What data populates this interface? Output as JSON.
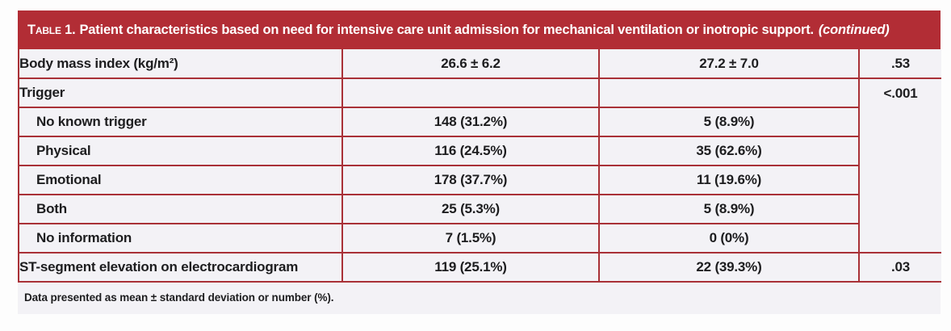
{
  "colors": {
    "header_red": "#b22d35",
    "rule_red": "#a93137",
    "row_bg": "#f3f2f6",
    "text": "#1d1d1f"
  },
  "table": {
    "title": {
      "prefix": "Table 1.",
      "text": "Patient characteristics based on need for intensive care unit admission for mechanical ventilation or inotropic support.",
      "continued": "(continued)"
    },
    "rows": [
      {
        "label": "Body mass index (kg/m²)",
        "indent": false,
        "values": [
          "26.6 ± 6.2",
          "27.2 ± 7.0"
        ],
        "p": ".53"
      },
      {
        "label": "Trigger",
        "indent": false,
        "values": [
          "",
          ""
        ],
        "p": "<.001",
        "p_rowspan": 6
      },
      {
        "label": "No known trigger",
        "indent": true,
        "values": [
          "148 (31.2%)",
          "5 (8.9%)"
        ]
      },
      {
        "label": "Physical",
        "indent": true,
        "values": [
          "116 (24.5%)",
          "35 (62.6%)"
        ]
      },
      {
        "label": "Emotional",
        "indent": true,
        "values": [
          "178 (37.7%)",
          "11 (19.6%)"
        ]
      },
      {
        "label": "Both",
        "indent": true,
        "values": [
          "25 (5.3%)",
          "5 (8.9%)"
        ]
      },
      {
        "label": "No information",
        "indent": true,
        "values": [
          "7 (1.5%)",
          "0 (0%)"
        ]
      },
      {
        "label": "ST-segment elevation on electrocardiogram",
        "indent": false,
        "values": [
          "119 (25.1%)",
          "22 (39.3%)"
        ],
        "p": ".03"
      }
    ],
    "footnote": "Data presented as mean ± standard deviation or number (%)."
  }
}
